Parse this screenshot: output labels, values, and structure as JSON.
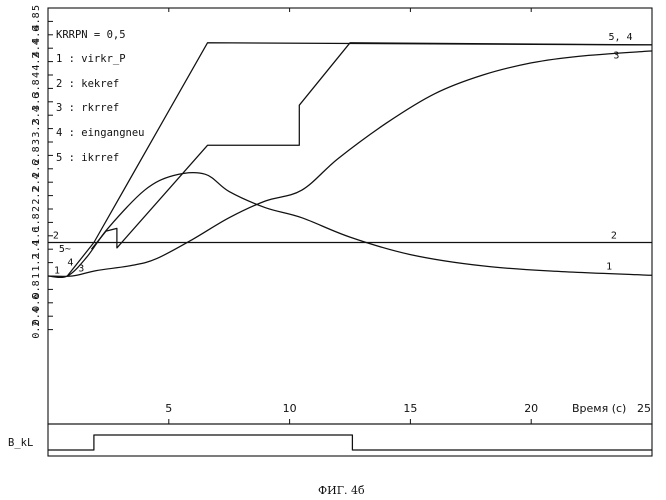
{
  "chart_data": {
    "type": "line",
    "xlabel": "Время (с)",
    "xlim": [
      0,
      25
    ],
    "x_ticks": [
      5,
      10,
      15,
      20,
      25
    ],
    "ylim": [
      0,
      5
    ],
    "y_ticks": [
      "0.2",
      "0.4",
      "0.6",
      "0.8",
      "1",
      "1.2",
      "1.4",
      "1.6",
      "1.8",
      "2",
      "2.2",
      "2.4",
      "2.6",
      "2.8",
      "3",
      "3.2",
      "3.4",
      "3.6",
      "3.8",
      "4",
      "4.2",
      "4.4",
      "4.6",
      "4.8",
      "5"
    ],
    "legend": {
      "header": "KRRPN = 0,5",
      "items": [
        "1 : virkr_P",
        "2 : kekref",
        "3 : rkrref",
        "4 : eingangneu",
        "5 : ikrref"
      ]
    },
    "series": [
      {
        "id": "1",
        "values": [
          [
            0,
            1.0
          ],
          [
            0.8,
            1.0
          ],
          [
            1.6,
            1.28
          ],
          [
            2.5,
            1.72
          ],
          [
            4.0,
            2.28
          ],
          [
            5.2,
            2.5
          ],
          [
            6.5,
            2.52
          ],
          [
            7.5,
            2.26
          ],
          [
            9.0,
            2.02
          ],
          [
            10.5,
            1.87
          ],
          [
            12.5,
            1.58
          ],
          [
            15.0,
            1.32
          ],
          [
            18.0,
            1.15
          ],
          [
            21.0,
            1.07
          ],
          [
            25.0,
            1.01
          ]
        ]
      },
      {
        "id": "2",
        "values": [
          [
            0,
            1.5
          ],
          [
            25,
            1.5
          ]
        ]
      },
      {
        "id": "3",
        "values": [
          [
            0,
            1.0
          ],
          [
            1.0,
            1.0
          ],
          [
            2.0,
            1.08
          ],
          [
            3.5,
            1.16
          ],
          [
            4.5,
            1.26
          ],
          [
            6.0,
            1.55
          ],
          [
            7.5,
            1.87
          ],
          [
            9.0,
            2.12
          ],
          [
            10.5,
            2.28
          ],
          [
            12.0,
            2.75
          ],
          [
            14.0,
            3.28
          ],
          [
            16.0,
            3.72
          ],
          [
            18.0,
            4.0
          ],
          [
            20.0,
            4.18
          ],
          [
            22.0,
            4.28
          ],
          [
            25.0,
            4.36
          ]
        ]
      },
      {
        "id": "4",
        "values": [
          [
            0.8,
            1.0
          ],
          [
            1.9,
            1.5
          ],
          [
            6.6,
            4.48
          ],
          [
            25,
            4.45
          ]
        ]
      },
      {
        "id": "5",
        "values": [
          [
            1.8,
            1.4
          ],
          [
            2.4,
            1.67
          ],
          [
            2.85,
            1.71
          ],
          [
            2.85,
            1.42
          ],
          [
            6.6,
            2.95
          ],
          [
            10.4,
            2.95
          ],
          [
            10.4,
            3.55
          ],
          [
            12.5,
            4.48
          ],
          [
            25,
            4.45
          ]
        ]
      }
    ],
    "curve_end_labels": [
      {
        "text": "5, 4",
        "x": 23.2,
        "y": 4.52
      },
      {
        "text": "3",
        "x": 23.4,
        "y": 4.25
      },
      {
        "text": "2",
        "x": 23.3,
        "y": 1.56
      },
      {
        "text": "1",
        "x": 23.1,
        "y": 1.1
      }
    ],
    "curve_start_labels": [
      {
        "text": "2",
        "x": 0.2,
        "y": 1.56
      },
      {
        "text": "5~",
        "x": 0.45,
        "y": 1.36
      },
      {
        "text": "4",
        "x": 0.8,
        "y": 1.16
      },
      {
        "text": "1",
        "x": 0.25,
        "y": 1.04
      },
      {
        "text": "3",
        "x": 1.25,
        "y": 1.07
      }
    ],
    "signal_panel": {
      "label": "B_kL",
      "low": 0,
      "high": 1,
      "steps": [
        [
          0,
          0
        ],
        [
          1.9,
          0
        ],
        [
          1.9,
          1
        ],
        [
          12.6,
          1
        ],
        [
          12.6,
          0
        ],
        [
          25,
          0
        ]
      ]
    },
    "caption": "ФИГ. 4б"
  }
}
